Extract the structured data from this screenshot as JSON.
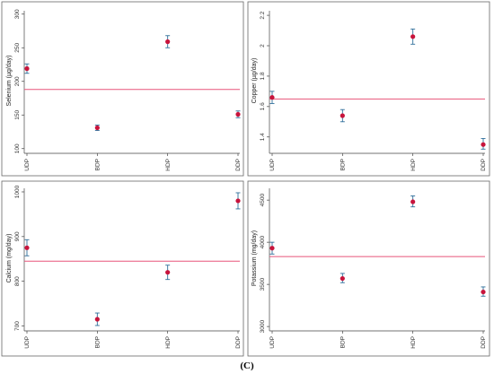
{
  "caption": "(C)",
  "colors": {
    "point": "#c8143c",
    "errorbar": "#2e6e9a",
    "reference": "#e8557a",
    "frame": "#666666",
    "axis": "#444444"
  },
  "chart_data": [
    {
      "type": "scatter",
      "title": "",
      "xlabel": "",
      "ylabel": "Selenium (µg/day)",
      "categories": [
        "UDP",
        "BDP",
        "HDP",
        "DDP"
      ],
      "values": [
        219,
        131,
        259,
        151
      ],
      "error_low": [
        212,
        127,
        250,
        146
      ],
      "error_high": [
        226,
        135,
        268,
        156
      ],
      "reference_line": 188,
      "ylim": [
        97,
        305
      ],
      "yticks": [
        100,
        150,
        200,
        250,
        300
      ],
      "ytick_labels": [
        "100",
        "150",
        "200",
        "250",
        "300"
      ],
      "grid": false
    },
    {
      "type": "scatter",
      "title": "",
      "xlabel": "",
      "ylabel": "Copper (µg/day)",
      "categories": [
        "UDP",
        "BDP",
        "HDP",
        "DDP"
      ],
      "values": [
        1.66,
        1.54,
        2.06,
        1.35
      ],
      "error_low": [
        1.62,
        1.5,
        2.01,
        1.32
      ],
      "error_high": [
        1.7,
        1.58,
        2.11,
        1.39
      ],
      "reference_line": 1.65,
      "ylim": [
        1.31,
        2.23
      ],
      "yticks": [
        1.4,
        1.6,
        1.8,
        2.0,
        2.2
      ],
      "ytick_labels": [
        "1.4",
        "1.6",
        "1.8",
        "2",
        "2.2"
      ],
      "grid": false
    },
    {
      "type": "scatter",
      "title": "",
      "xlabel": "",
      "ylabel": "Calcium (mg/day)",
      "categories": [
        "UDP",
        "BDP",
        "HDP",
        "DDP"
      ],
      "values": [
        875,
        715,
        820,
        980
      ],
      "error_low": [
        857,
        701,
        804,
        962
      ],
      "error_high": [
        893,
        729,
        836,
        998
      ],
      "reference_line": 845,
      "ylim": [
        695,
        1008
      ],
      "yticks": [
        700,
        800,
        900,
        1000
      ],
      "ytick_labels": [
        "700",
        "800",
        "900",
        "1000"
      ],
      "grid": false
    },
    {
      "type": "scatter",
      "title": "",
      "xlabel": "",
      "ylabel": "Potassium (mg/day)",
      "categories": [
        "UDP",
        "BDP",
        "HDP",
        "DDP"
      ],
      "values": [
        3930,
        3570,
        4480,
        3410
      ],
      "error_low": [
        3860,
        3520,
        4420,
        3360
      ],
      "error_high": [
        4000,
        3630,
        4550,
        3470
      ],
      "reference_line": 3830,
      "ylim": [
        2980,
        4640
      ],
      "yticks": [
        3000,
        3500,
        4000,
        4500
      ],
      "ytick_labels": [
        "3000",
        "3500",
        "4000",
        "4500"
      ],
      "grid": false
    }
  ]
}
